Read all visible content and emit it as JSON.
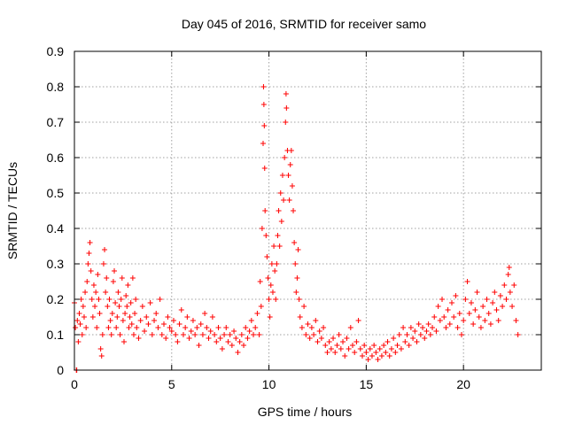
{
  "chart_data": {
    "type": "scatter",
    "title": "Day 045 of 2016, SRMTID for receiver samo",
    "xlabel": "GPS time / hours",
    "ylabel": "SRMTID / TECUs",
    "xlim": [
      0,
      24
    ],
    "ylim": [
      0,
      0.9
    ],
    "xticks": [
      0,
      5,
      10,
      15,
      20
    ],
    "xtick_labels": [
      "0",
      "5",
      "10",
      "15",
      "20"
    ],
    "yticks": [
      0,
      0.1,
      0.2,
      0.3,
      0.4,
      0.5,
      0.6,
      0.7,
      0.8,
      0.9
    ],
    "ytick_labels": [
      "0",
      "0.1",
      "0.2",
      "0.3",
      "0.4",
      "0.5",
      "0.6",
      "0.7",
      "0.8",
      "0.9"
    ],
    "grid": true,
    "marker": "+",
    "color": "#ff0000",
    "series": [
      {
        "name": "SRMTID",
        "points": [
          [
            0.0,
            0.19
          ],
          [
            0.05,
            0.12
          ],
          [
            0.1,
            0.0
          ],
          [
            0.12,
            0.0
          ],
          [
            0.15,
            0.14
          ],
          [
            0.2,
            0.08
          ],
          [
            0.25,
            0.16
          ],
          [
            0.3,
            0.13
          ],
          [
            0.35,
            0.2
          ],
          [
            0.4,
            0.1
          ],
          [
            0.45,
            0.18
          ],
          [
            0.5,
            0.15
          ],
          [
            0.55,
            0.22
          ],
          [
            0.6,
            0.12
          ],
          [
            0.65,
            0.25
          ],
          [
            0.7,
            0.3
          ],
          [
            0.75,
            0.33
          ],
          [
            0.8,
            0.36
          ],
          [
            0.85,
            0.28
          ],
          [
            0.9,
            0.2
          ],
          [
            0.95,
            0.15
          ],
          [
            1.0,
            0.24
          ],
          [
            1.05,
            0.18
          ],
          [
            1.1,
            0.22
          ],
          [
            1.15,
            0.12
          ],
          [
            1.2,
            0.27
          ],
          [
            1.25,
            0.2
          ],
          [
            1.3,
            0.16
          ],
          [
            1.35,
            0.06
          ],
          [
            1.4,
            0.04
          ],
          [
            1.45,
            0.1
          ],
          [
            1.5,
            0.3
          ],
          [
            1.55,
            0.34
          ],
          [
            1.6,
            0.22
          ],
          [
            1.65,
            0.26
          ],
          [
            1.7,
            0.18
          ],
          [
            1.75,
            0.12
          ],
          [
            1.8,
            0.2
          ],
          [
            1.85,
            0.14
          ],
          [
            1.9,
            0.1
          ],
          [
            1.95,
            0.16
          ],
          [
            2.0,
            0.25
          ],
          [
            2.05,
            0.28
          ],
          [
            2.1,
            0.19
          ],
          [
            2.15,
            0.12
          ],
          [
            2.2,
            0.15
          ],
          [
            2.25,
            0.22
          ],
          [
            2.3,
            0.18
          ],
          [
            2.35,
            0.1
          ],
          [
            2.4,
            0.2
          ],
          [
            2.45,
            0.26
          ],
          [
            2.5,
            0.14
          ],
          [
            2.55,
            0.08
          ],
          [
            2.6,
            0.16
          ],
          [
            2.65,
            0.21
          ],
          [
            2.7,
            0.18
          ],
          [
            2.75,
            0.24
          ],
          [
            2.8,
            0.12
          ],
          [
            2.85,
            0.15
          ],
          [
            2.9,
            0.19
          ],
          [
            2.95,
            0.13
          ],
          [
            3.0,
            0.26
          ],
          [
            3.05,
            0.1
          ],
          [
            3.1,
            0.16
          ],
          [
            3.15,
            0.2
          ],
          [
            3.2,
            0.12
          ],
          [
            3.3,
            0.09
          ],
          [
            3.4,
            0.14
          ],
          [
            3.5,
            0.18
          ],
          [
            3.6,
            0.11
          ],
          [
            3.7,
            0.15
          ],
          [
            3.8,
            0.13
          ],
          [
            3.9,
            0.19
          ],
          [
            4.0,
            0.1
          ],
          [
            4.1,
            0.14
          ],
          [
            4.2,
            0.16
          ],
          [
            4.3,
            0.12
          ],
          [
            4.4,
            0.2
          ],
          [
            4.5,
            0.1
          ],
          [
            4.6,
            0.13
          ],
          [
            4.7,
            0.09
          ],
          [
            4.8,
            0.15
          ],
          [
            4.9,
            0.12
          ],
          [
            5.0,
            0.11
          ],
          [
            5.1,
            0.14
          ],
          [
            5.2,
            0.1
          ],
          [
            5.3,
            0.08
          ],
          [
            5.4,
            0.13
          ],
          [
            5.5,
            0.17
          ],
          [
            5.6,
            0.1
          ],
          [
            5.7,
            0.12
          ],
          [
            5.8,
            0.15
          ],
          [
            5.9,
            0.09
          ],
          [
            6.0,
            0.11
          ],
          [
            6.1,
            0.14
          ],
          [
            6.2,
            0.1
          ],
          [
            6.3,
            0.12
          ],
          [
            6.4,
            0.07
          ],
          [
            6.5,
            0.13
          ],
          [
            6.6,
            0.1
          ],
          [
            6.7,
            0.16
          ],
          [
            6.8,
            0.12
          ],
          [
            6.9,
            0.09
          ],
          [
            7.0,
            0.11
          ],
          [
            7.1,
            0.15
          ],
          [
            7.2,
            0.1
          ],
          [
            7.3,
            0.08
          ],
          [
            7.4,
            0.12
          ],
          [
            7.5,
            0.09
          ],
          [
            7.6,
            0.06
          ],
          [
            7.7,
            0.1
          ],
          [
            7.8,
            0.12
          ],
          [
            7.9,
            0.08
          ],
          [
            8.0,
            0.1
          ],
          [
            8.1,
            0.07
          ],
          [
            8.2,
            0.11
          ],
          [
            8.3,
            0.09
          ],
          [
            8.4,
            0.05
          ],
          [
            8.5,
            0.08
          ],
          [
            8.6,
            0.1
          ],
          [
            8.7,
            0.07
          ],
          [
            8.8,
            0.12
          ],
          [
            8.9,
            0.09
          ],
          [
            9.0,
            0.11
          ],
          [
            9.1,
            0.14
          ],
          [
            9.2,
            0.1
          ],
          [
            9.3,
            0.12
          ],
          [
            9.4,
            0.16
          ],
          [
            9.5,
            0.1
          ],
          [
            9.55,
            0.25
          ],
          [
            9.6,
            0.18
          ],
          [
            9.65,
            0.4
          ],
          [
            9.7,
            0.64
          ],
          [
            9.72,
            0.8
          ],
          [
            9.74,
            0.75
          ],
          [
            9.76,
            0.69
          ],
          [
            9.78,
            0.57
          ],
          [
            9.8,
            0.45
          ],
          [
            9.85,
            0.38
          ],
          [
            9.9,
            0.32
          ],
          [
            9.95,
            0.26
          ],
          [
            10.0,
            0.2
          ],
          [
            10.05,
            0.15
          ],
          [
            10.1,
            0.24
          ],
          [
            10.15,
            0.3
          ],
          [
            10.2,
            0.22
          ],
          [
            10.25,
            0.35
          ],
          [
            10.3,
            0.28
          ],
          [
            10.35,
            0.2
          ],
          [
            10.4,
            0.3
          ],
          [
            10.45,
            0.38
          ],
          [
            10.5,
            0.45
          ],
          [
            10.55,
            0.35
          ],
          [
            10.6,
            0.5
          ],
          [
            10.65,
            0.42
          ],
          [
            10.7,
            0.55
          ],
          [
            10.75,
            0.48
          ],
          [
            10.8,
            0.6
          ],
          [
            10.85,
            0.7
          ],
          [
            10.88,
            0.78
          ],
          [
            10.9,
            0.74
          ],
          [
            10.95,
            0.62
          ],
          [
            11.0,
            0.55
          ],
          [
            11.05,
            0.48
          ],
          [
            11.1,
            0.58
          ],
          [
            11.15,
            0.62
          ],
          [
            11.2,
            0.52
          ],
          [
            11.25,
            0.45
          ],
          [
            11.3,
            0.36
          ],
          [
            11.35,
            0.3
          ],
          [
            11.4,
            0.22
          ],
          [
            11.45,
            0.26
          ],
          [
            11.5,
            0.34
          ],
          [
            11.55,
            0.2
          ],
          [
            11.6,
            0.15
          ],
          [
            11.7,
            0.12
          ],
          [
            11.8,
            0.18
          ],
          [
            11.9,
            0.1
          ],
          [
            12.0,
            0.13
          ],
          [
            12.1,
            0.09
          ],
          [
            12.2,
            0.12
          ],
          [
            12.3,
            0.1
          ],
          [
            12.4,
            0.14
          ],
          [
            12.5,
            0.08
          ],
          [
            12.6,
            0.11
          ],
          [
            12.7,
            0.09
          ],
          [
            12.8,
            0.12
          ],
          [
            12.9,
            0.07
          ],
          [
            13.0,
            0.05
          ],
          [
            13.1,
            0.08
          ],
          [
            13.2,
            0.06
          ],
          [
            13.3,
            0.09
          ],
          [
            13.4,
            0.05
          ],
          [
            13.5,
            0.07
          ],
          [
            13.6,
            0.1
          ],
          [
            13.7,
            0.06
          ],
          [
            13.8,
            0.08
          ],
          [
            13.9,
            0.04
          ],
          [
            14.0,
            0.09
          ],
          [
            14.1,
            0.06
          ],
          [
            14.2,
            0.12
          ],
          [
            14.3,
            0.07
          ],
          [
            14.4,
            0.05
          ],
          [
            14.5,
            0.08
          ],
          [
            14.6,
            0.14
          ],
          [
            14.7,
            0.06
          ],
          [
            14.8,
            0.04
          ],
          [
            14.9,
            0.07
          ],
          [
            15.0,
            0.05
          ],
          [
            15.1,
            0.03
          ],
          [
            15.2,
            0.06
          ],
          [
            15.3,
            0.04
          ],
          [
            15.4,
            0.07
          ],
          [
            15.5,
            0.05
          ],
          [
            15.6,
            0.03
          ],
          [
            15.7,
            0.06
          ],
          [
            15.8,
            0.04
          ],
          [
            15.9,
            0.07
          ],
          [
            16.0,
            0.05
          ],
          [
            16.1,
            0.08
          ],
          [
            16.2,
            0.04
          ],
          [
            16.3,
            0.06
          ],
          [
            16.4,
            0.09
          ],
          [
            16.5,
            0.05
          ],
          [
            16.6,
            0.07
          ],
          [
            16.7,
            0.1
          ],
          [
            16.8,
            0.06
          ],
          [
            16.9,
            0.12
          ],
          [
            17.0,
            0.08
          ],
          [
            17.1,
            0.1
          ],
          [
            17.2,
            0.07
          ],
          [
            17.3,
            0.12
          ],
          [
            17.4,
            0.09
          ],
          [
            17.5,
            0.11
          ],
          [
            17.6,
            0.08
          ],
          [
            17.7,
            0.13
          ],
          [
            17.8,
            0.1
          ],
          [
            17.9,
            0.12
          ],
          [
            18.0,
            0.09
          ],
          [
            18.1,
            0.11
          ],
          [
            18.2,
            0.13
          ],
          [
            18.3,
            0.1
          ],
          [
            18.4,
            0.12
          ],
          [
            18.5,
            0.15
          ],
          [
            18.6,
            0.11
          ],
          [
            18.7,
            0.18
          ],
          [
            18.8,
            0.14
          ],
          [
            18.9,
            0.2
          ],
          [
            19.0,
            0.15
          ],
          [
            19.1,
            0.12
          ],
          [
            19.2,
            0.17
          ],
          [
            19.3,
            0.13
          ],
          [
            19.4,
            0.19
          ],
          [
            19.5,
            0.15
          ],
          [
            19.6,
            0.21
          ],
          [
            19.7,
            0.12
          ],
          [
            19.8,
            0.16
          ],
          [
            19.9,
            0.1
          ],
          [
            20.0,
            0.14
          ],
          [
            20.1,
            0.2
          ],
          [
            20.2,
            0.25
          ],
          [
            20.3,
            0.16
          ],
          [
            20.4,
            0.19
          ],
          [
            20.5,
            0.13
          ],
          [
            20.6,
            0.17
          ],
          [
            20.7,
            0.22
          ],
          [
            20.8,
            0.15
          ],
          [
            20.9,
            0.12
          ],
          [
            21.0,
            0.18
          ],
          [
            21.1,
            0.14
          ],
          [
            21.2,
            0.2
          ],
          [
            21.3,
            0.16
          ],
          [
            21.4,
            0.13
          ],
          [
            21.5,
            0.19
          ],
          [
            21.6,
            0.22
          ],
          [
            21.7,
            0.17
          ],
          [
            21.8,
            0.14
          ],
          [
            21.9,
            0.21
          ],
          [
            22.0,
            0.18
          ],
          [
            22.1,
            0.24
          ],
          [
            22.2,
            0.2
          ],
          [
            22.3,
            0.27
          ],
          [
            22.35,
            0.29
          ],
          [
            22.4,
            0.22
          ],
          [
            22.5,
            0.18
          ],
          [
            22.6,
            0.24
          ],
          [
            22.7,
            0.14
          ],
          [
            22.8,
            0.1
          ]
        ]
      }
    ]
  }
}
